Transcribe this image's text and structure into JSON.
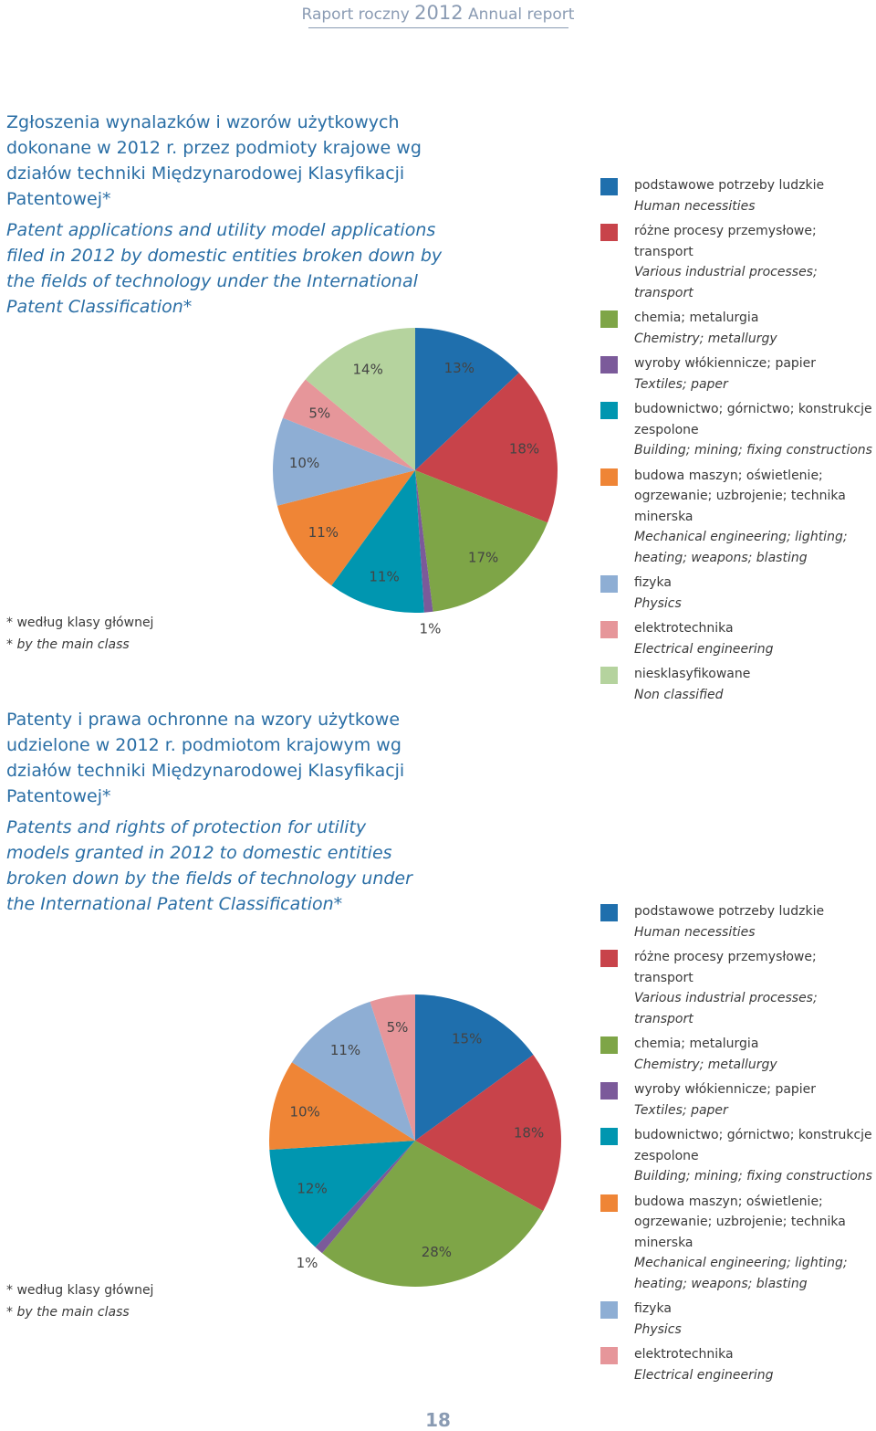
{
  "header": {
    "title_pl": "Raport roczny",
    "year": "2012",
    "title_en": "Annual report"
  },
  "chart_data": [
    {
      "type": "pie",
      "title": "Zgłoszenia wynalazków i wzorów użytkowych dokonane w 2012 r. przez podmioty krajowe wg działów techniki Międzynarodowej Klasyfikacji Patentowej*",
      "subtitle": "Patent applications and utility model applications filed in 2012 by domestic entities broken down by the fields of technology under the International Patent Classification*",
      "notes": [
        "* według klasy głównej",
        "* by the main class"
      ],
      "categories": [
        "podstawowe potrzeby ludzkie",
        "różne procesy przemysłowe; transport",
        "chemia; metalurgia",
        "wyroby włókiennicze; papier",
        "budownictwo; górnictwo; konstrukcje zespolone",
        "budowa maszyn; oświetlenie; ogrzewanie; uzbrojenie; technika minerska",
        "fizyka",
        "elektrotechnika",
        "niesklasyfikowane"
      ],
      "categories_en": [
        "Human necessities",
        "Various industrial processes; transport",
        "Chemistry; metallurgy",
        "Textiles; paper",
        "Building; mining; fixing constructions",
        "Mechanical engineering; lighting; heating; weapons; blasting",
        "Physics",
        "Electrical engineering",
        "Non classified"
      ],
      "values": [
        13,
        18,
        17,
        1,
        11,
        11,
        10,
        5,
        14
      ],
      "value_labels": [
        "13%",
        "18%",
        "17%",
        "1%",
        "11%",
        "11%",
        "10%",
        "5%",
        "14%"
      ],
      "colors": [
        "#1f6fad",
        "#c8434a",
        "#7ea547",
        "#7b5a9a",
        "#0096b0",
        "#ef8536",
        "#8eaed4",
        "#e6969a",
        "#b5d39e"
      ]
    },
    {
      "type": "pie",
      "title": "Patenty i prawa ochronne na wzory użytkowe udzielone w 2012 r. podmiotom krajowym wg działów techniki Międzynarodowej Klasyfikacji Patentowej*",
      "subtitle": "Patents and rights of protection for utility models granted in 2012 to domestic entities broken down by the fields of technology under the International Patent Classification*",
      "notes": [
        "* według klasy głównej",
        "* by the main class"
      ],
      "categories": [
        "podstawowe potrzeby ludzkie",
        "różne procesy przemysłowe; transport",
        "chemia; metalurgia",
        "wyroby włókiennicze; papier",
        "budownictwo; górnictwo; konstrukcje zespolone",
        "budowa maszyn; oświetlenie; ogrzewanie; uzbrojenie; technika minerska",
        "fizyka",
        "elektrotechnika"
      ],
      "categories_en": [
        "Human necessities",
        "Various industrial processes; transport",
        "Chemistry; metallurgy",
        "Textiles; paper",
        "Building; mining; fixing constructions",
        "Mechanical engineering; lighting; heating; weapons; blasting",
        "Physics",
        "Electrical engineering"
      ],
      "values": [
        15,
        18,
        28,
        1,
        12,
        10,
        11,
        5
      ],
      "value_labels": [
        "15%",
        "18%",
        "28%",
        "1%",
        "12%",
        "10%",
        "11%",
        "5%"
      ],
      "colors": [
        "#1f6fad",
        "#c8434a",
        "#7ea547",
        "#7b5a9a",
        "#0096b0",
        "#ef8536",
        "#8eaed4",
        "#e6969a"
      ]
    }
  ],
  "page_number": "18"
}
